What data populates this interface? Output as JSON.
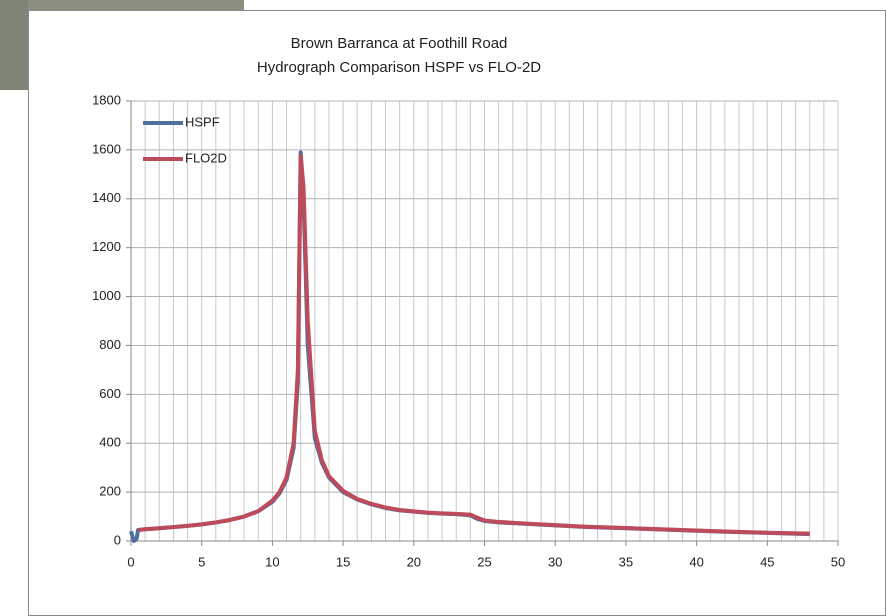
{
  "chart_data": {
    "type": "line",
    "title": [
      "Brown Barranca at Foothill Road",
      "Hydrograph Comparison HSPF vs FLO-2D"
    ],
    "x": [
      0,
      0.2,
      0.4,
      0.5,
      1,
      2,
      3,
      4,
      5,
      6,
      7,
      8,
      9,
      10,
      10.5,
      11,
      11.5,
      11.8,
      12,
      12.2,
      12.5,
      13,
      13.5,
      14,
      15,
      16,
      17,
      18,
      19,
      20,
      21,
      22,
      23,
      24,
      24.5,
      25,
      26,
      28,
      30,
      32,
      35,
      38,
      40,
      42,
      45,
      48
    ],
    "series": [
      {
        "name": "HSPF",
        "color": "#4f6f9f",
        "values": [
          40,
          0,
          10,
          45,
          48,
          52,
          57,
          62,
          68,
          76,
          86,
          100,
          122,
          160,
          195,
          250,
          380,
          650,
          1590,
          1400,
          800,
          420,
          320,
          260,
          200,
          170,
          150,
          135,
          125,
          120,
          115,
          112,
          110,
          105,
          90,
          82,
          76,
          70,
          64,
          58,
          52,
          46,
          42,
          38,
          33,
          28
        ]
      },
      {
        "name": "FLO2D",
        "color": "#be4b5b",
        "values": [
          null,
          null,
          null,
          45,
          48,
          52,
          57,
          62,
          68,
          76,
          86,
          100,
          122,
          165,
          200,
          260,
          400,
          700,
          1575,
          1450,
          900,
          450,
          330,
          265,
          205,
          172,
          152,
          137,
          127,
          121,
          116,
          113,
          111,
          108,
          95,
          84,
          78,
          71,
          65,
          59,
          53,
          47,
          43,
          39,
          34,
          30
        ]
      }
    ],
    "xlim": [
      0,
      50
    ],
    "xticks": [
      0,
      5,
      10,
      15,
      20,
      25,
      30,
      35,
      40,
      45,
      50
    ],
    "xgrid": [
      0,
      1,
      2,
      3,
      4,
      5,
      6,
      7,
      8,
      9,
      10,
      11,
      12,
      13,
      14,
      15,
      16,
      17,
      18,
      19,
      20,
      21,
      22,
      23,
      24,
      25,
      26,
      27,
      28,
      29,
      30,
      31,
      32,
      33,
      34,
      35,
      36,
      37,
      38,
      39,
      40,
      41,
      42,
      43,
      44,
      45,
      46,
      47,
      48,
      49,
      50
    ],
    "ylim": [
      0,
      1800
    ],
    "yticks": [
      0,
      200,
      400,
      600,
      800,
      1000,
      1200,
      1400,
      1600,
      1800
    ],
    "grid": true,
    "legend": "upper left"
  }
}
